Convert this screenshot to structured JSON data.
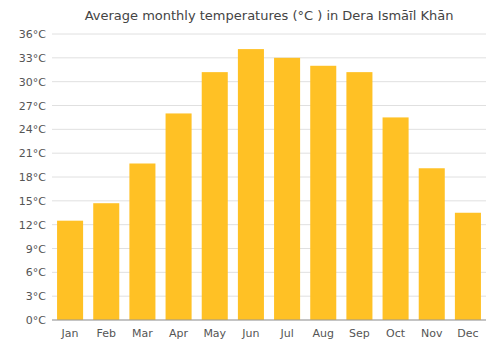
{
  "chart_data": {
    "type": "bar",
    "title": "Average monthly temperatures (°C ) in Dera Ismāīl Khān",
    "categories": [
      "Jan",
      "Feb",
      "Mar",
      "Apr",
      "May",
      "Jun",
      "Jul",
      "Aug",
      "Sep",
      "Oct",
      "Nov",
      "Dec"
    ],
    "values": [
      12.5,
      14.7,
      19.7,
      26.0,
      31.2,
      34.1,
      33.0,
      32.0,
      31.2,
      25.5,
      19.1,
      13.5
    ],
    "color": "#FFC125",
    "ylim": [
      0,
      36
    ],
    "yticks": [
      {
        "value": 0,
        "label": "0°C"
      },
      {
        "value": 3,
        "label": "3°C"
      },
      {
        "value": 6,
        "label": "6°C"
      },
      {
        "value": 9,
        "label": "9°C"
      },
      {
        "value": 12,
        "label": "12°C"
      },
      {
        "value": 15,
        "label": "15°C"
      },
      {
        "value": 18,
        "label": "18°C"
      },
      {
        "value": 21,
        "label": "21°C"
      },
      {
        "value": 24,
        "label": "24°C"
      },
      {
        "value": 27,
        "label": "27°C"
      },
      {
        "value": 30,
        "label": "30°C"
      },
      {
        "value": 33,
        "label": "33°C"
      },
      {
        "value": 36,
        "label": "36°C"
      }
    ],
    "grid": true
  }
}
